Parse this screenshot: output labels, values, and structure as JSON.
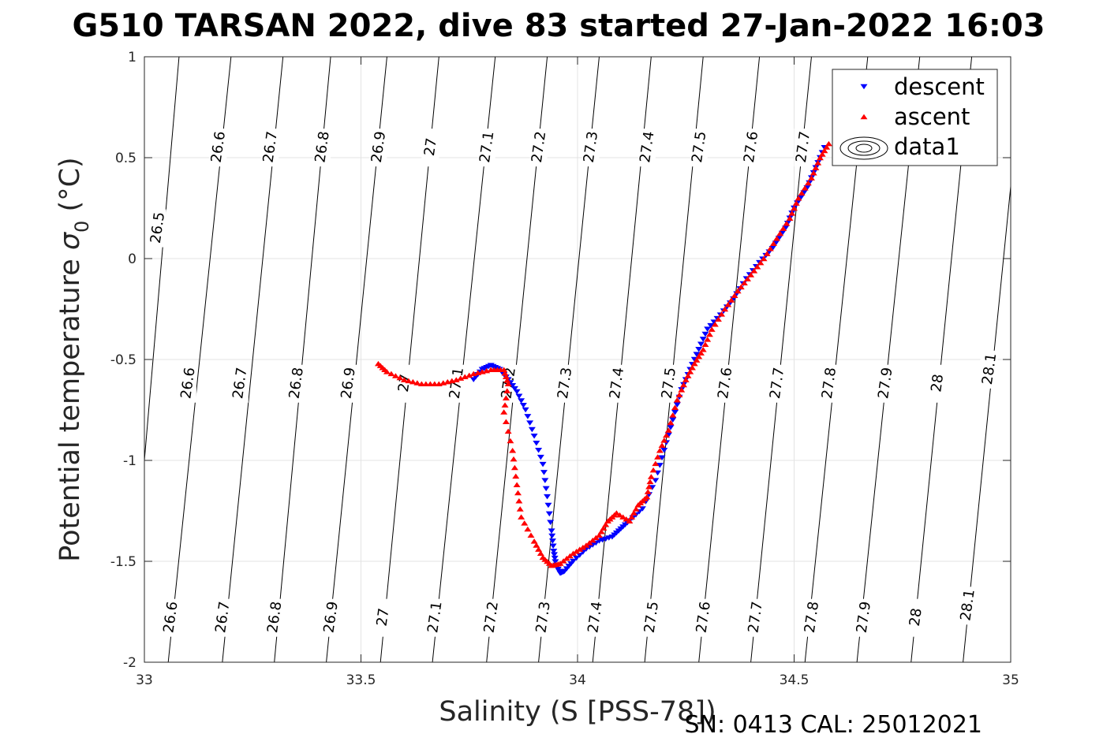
{
  "chart_data": {
    "type": "scatter",
    "title": "G510 TARSAN 2022, dive 83 started 27-Jan-2022 16:03",
    "xlabel": "Salinity (S [PSS-78])",
    "ylabel_prefix": "Potential temperature ",
    "ylabel_symbol": "σ",
    "ylabel_subscript": "0",
    "ylabel_suffix": " (°C)",
    "xlim": [
      33,
      35
    ],
    "ylim": [
      -2,
      1
    ],
    "xticks": [
      33,
      33.5,
      34,
      34.5,
      35
    ],
    "xtick_labels": [
      "33",
      "33.5",
      "34",
      "34.5",
      "35"
    ],
    "yticks": [
      -2,
      -1.5,
      -1,
      -0.5,
      0,
      0.5,
      1
    ],
    "ytick_labels": [
      "-2",
      "-1.5",
      "-1",
      "-0.5",
      "0",
      "0.5",
      "1"
    ],
    "grid": true,
    "legend_position": "top-right",
    "footer": "SN: 0413  CAL: 25012021",
    "series": [
      {
        "name": "descent",
        "color": "#0000ff",
        "marker": "triangle-down",
        "points": [
          [
            33.76,
            -0.6
          ],
          [
            33.78,
            -0.55
          ],
          [
            33.8,
            -0.53
          ],
          [
            33.82,
            -0.55
          ],
          [
            33.84,
            -0.6
          ],
          [
            33.86,
            -0.66
          ],
          [
            33.88,
            -0.75
          ],
          [
            33.9,
            -0.88
          ],
          [
            33.92,
            -1.02
          ],
          [
            33.93,
            -1.18
          ],
          [
            33.94,
            -1.35
          ],
          [
            33.945,
            -1.45
          ],
          [
            33.95,
            -1.52
          ],
          [
            33.96,
            -1.56
          ],
          [
            33.97,
            -1.55
          ],
          [
            33.99,
            -1.5
          ],
          [
            34.02,
            -1.44
          ],
          [
            34.05,
            -1.4
          ],
          [
            34.08,
            -1.38
          ],
          [
            34.1,
            -1.34
          ],
          [
            34.12,
            -1.3
          ],
          [
            34.15,
            -1.24
          ],
          [
            34.18,
            -1.1
          ],
          [
            34.2,
            -0.95
          ],
          [
            34.22,
            -0.8
          ],
          [
            34.24,
            -0.65
          ],
          [
            34.26,
            -0.55
          ],
          [
            34.28,
            -0.45
          ],
          [
            34.3,
            -0.35
          ],
          [
            34.33,
            -0.28
          ],
          [
            34.36,
            -0.2
          ],
          [
            34.39,
            -0.1
          ],
          [
            34.42,
            -0.02
          ],
          [
            34.45,
            0.05
          ],
          [
            34.48,
            0.15
          ],
          [
            34.5,
            0.25
          ],
          [
            34.53,
            0.35
          ],
          [
            34.55,
            0.45
          ],
          [
            34.57,
            0.55
          ]
        ]
      },
      {
        "name": "ascent",
        "color": "#ff0000",
        "marker": "triangle-up",
        "points": [
          [
            33.54,
            -0.52
          ],
          [
            33.56,
            -0.56
          ],
          [
            33.6,
            -0.6
          ],
          [
            33.64,
            -0.62
          ],
          [
            33.68,
            -0.62
          ],
          [
            33.72,
            -0.6
          ],
          [
            33.76,
            -0.57
          ],
          [
            33.8,
            -0.55
          ],
          [
            33.83,
            -0.55
          ],
          [
            33.84,
            -0.62
          ],
          [
            33.83,
            -0.76
          ],
          [
            33.85,
            -0.95
          ],
          [
            33.86,
            -1.12
          ],
          [
            33.87,
            -1.28
          ],
          [
            33.9,
            -1.4
          ],
          [
            33.92,
            -1.48
          ],
          [
            33.94,
            -1.52
          ],
          [
            33.96,
            -1.51
          ],
          [
            33.99,
            -1.46
          ],
          [
            34.02,
            -1.42
          ],
          [
            34.05,
            -1.37
          ],
          [
            34.07,
            -1.3
          ],
          [
            34.09,
            -1.26
          ],
          [
            34.12,
            -1.3
          ],
          [
            34.14,
            -1.22
          ],
          [
            34.16,
            -1.18
          ],
          [
            34.17,
            -1.08
          ],
          [
            34.19,
            -0.95
          ],
          [
            34.21,
            -0.85
          ],
          [
            34.23,
            -0.7
          ],
          [
            34.25,
            -0.6
          ],
          [
            34.27,
            -0.52
          ],
          [
            34.29,
            -0.45
          ],
          [
            34.31,
            -0.35
          ],
          [
            34.34,
            -0.25
          ],
          [
            34.37,
            -0.16
          ],
          [
            34.4,
            -0.08
          ],
          [
            34.43,
            0.0
          ],
          [
            34.46,
            0.1
          ],
          [
            34.49,
            0.2
          ],
          [
            34.51,
            0.3
          ],
          [
            34.54,
            0.4
          ],
          [
            34.56,
            0.5
          ],
          [
            34.58,
            0.57
          ]
        ]
      }
    ],
    "legend": [
      {
        "label": "descent",
        "marker": "triangle-down",
        "color": "#0000ff"
      },
      {
        "label": "ascent",
        "marker": "triangle-up",
        "color": "#ff0000"
      },
      {
        "label": "data1",
        "marker": "contour"
      }
    ],
    "contours": [
      {
        "level": "26.5",
        "top_x": 33.08,
        "bottom_x": 32.96
      },
      {
        "level": "26.6",
        "top_x": 33.2,
        "bottom_x": 33.055
      },
      {
        "level": "26.7",
        "top_x": 33.32,
        "bottom_x": 33.18
      },
      {
        "level": "26.8",
        "top_x": 33.43,
        "bottom_x": 33.3
      },
      {
        "level": "26.9",
        "top_x": 33.56,
        "bottom_x": 33.42
      },
      {
        "level": "27",
        "top_x": 33.68,
        "bottom_x": 33.545
      },
      {
        "level": "27.1",
        "top_x": 33.81,
        "bottom_x": 33.665
      },
      {
        "level": "27.2",
        "top_x": 33.93,
        "bottom_x": 33.79
      },
      {
        "level": "27.3",
        "top_x": 34.05,
        "bottom_x": 33.91
      },
      {
        "level": "27.4",
        "top_x": 34.17,
        "bottom_x": 34.035
      },
      {
        "level": "27.5",
        "top_x": 34.29,
        "bottom_x": 34.155
      },
      {
        "level": "27.6",
        "top_x": 34.42,
        "bottom_x": 34.28
      },
      {
        "level": "27.7",
        "top_x": 34.54,
        "bottom_x": 34.4
      },
      {
        "level": "27.8",
        "top_x": 34.67,
        "bottom_x": 34.525
      },
      {
        "level": "27.9",
        "top_x": 34.79,
        "bottom_x": 34.645
      },
      {
        "level": "28",
        "top_x": 34.91,
        "bottom_x": 34.77
      },
      {
        "level": "28.1",
        "top_x": 35.03,
        "bottom_x": 34.89
      }
    ],
    "contour_labels": [
      {
        "text": "26.5",
        "s": 33.03,
        "t": 0.15
      },
      {
        "text": "26.6",
        "s": 33.17,
        "t": 0.55
      },
      {
        "text": "26.7",
        "s": 33.29,
        "t": 0.55
      },
      {
        "text": "26.8",
        "s": 33.41,
        "t": 0.55
      },
      {
        "text": "26.9",
        "s": 33.54,
        "t": 0.55
      },
      {
        "text": "27",
        "s": 33.66,
        "t": 0.55
      },
      {
        "text": "27.1",
        "s": 33.79,
        "t": 0.55
      },
      {
        "text": "27.2",
        "s": 33.91,
        "t": 0.55
      },
      {
        "text": "27.3",
        "s": 34.03,
        "t": 0.55
      },
      {
        "text": "27.4",
        "s": 34.16,
        "t": 0.55
      },
      {
        "text": "27.5",
        "s": 34.28,
        "t": 0.55
      },
      {
        "text": "27.6",
        "s": 34.4,
        "t": 0.55
      },
      {
        "text": "27.7",
        "s": 34.52,
        "t": 0.55
      },
      {
        "text": "26.6",
        "s": 33.1,
        "t": -0.62
      },
      {
        "text": "26.7",
        "s": 33.22,
        "t": -0.62
      },
      {
        "text": "26.8",
        "s": 33.35,
        "t": -0.62
      },
      {
        "text": "26.9",
        "s": 33.47,
        "t": -0.62
      },
      {
        "text": "27",
        "s": 33.6,
        "t": -0.62
      },
      {
        "text": "27.1",
        "s": 33.72,
        "t": -0.62
      },
      {
        "text": "27.2",
        "s": 33.84,
        "t": -0.62
      },
      {
        "text": "27.3",
        "s": 33.97,
        "t": -0.62
      },
      {
        "text": "27.4",
        "s": 34.09,
        "t": -0.62
      },
      {
        "text": "27.5",
        "s": 34.21,
        "t": -0.62
      },
      {
        "text": "27.6",
        "s": 34.34,
        "t": -0.62
      },
      {
        "text": "27.7",
        "s": 34.46,
        "t": -0.62
      },
      {
        "text": "27.8",
        "s": 34.58,
        "t": -0.62
      },
      {
        "text": "27.9",
        "s": 34.71,
        "t": -0.62
      },
      {
        "text": "28",
        "s": 34.83,
        "t": -0.62
      },
      {
        "text": "28.1",
        "s": 34.95,
        "t": -0.55
      },
      {
        "text": "26.6",
        "s": 33.06,
        "t": -1.78
      },
      {
        "text": "26.7",
        "s": 33.18,
        "t": -1.78
      },
      {
        "text": "26.8",
        "s": 33.3,
        "t": -1.78
      },
      {
        "text": "26.9",
        "s": 33.43,
        "t": -1.78
      },
      {
        "text": "27",
        "s": 33.55,
        "t": -1.78
      },
      {
        "text": "27.1",
        "s": 33.67,
        "t": -1.78
      },
      {
        "text": "27.2",
        "s": 33.8,
        "t": -1.78
      },
      {
        "text": "27.3",
        "s": 33.92,
        "t": -1.78
      },
      {
        "text": "27.4",
        "s": 34.04,
        "t": -1.78
      },
      {
        "text": "27.5",
        "s": 34.17,
        "t": -1.78
      },
      {
        "text": "27.6",
        "s": 34.29,
        "t": -1.78
      },
      {
        "text": "27.7",
        "s": 34.41,
        "t": -1.78
      },
      {
        "text": "27.8",
        "s": 34.54,
        "t": -1.78
      },
      {
        "text": "27.9",
        "s": 34.66,
        "t": -1.78
      },
      {
        "text": "28",
        "s": 34.78,
        "t": -1.78
      },
      {
        "text": "28.1",
        "s": 34.9,
        "t": -1.72
      }
    ]
  }
}
